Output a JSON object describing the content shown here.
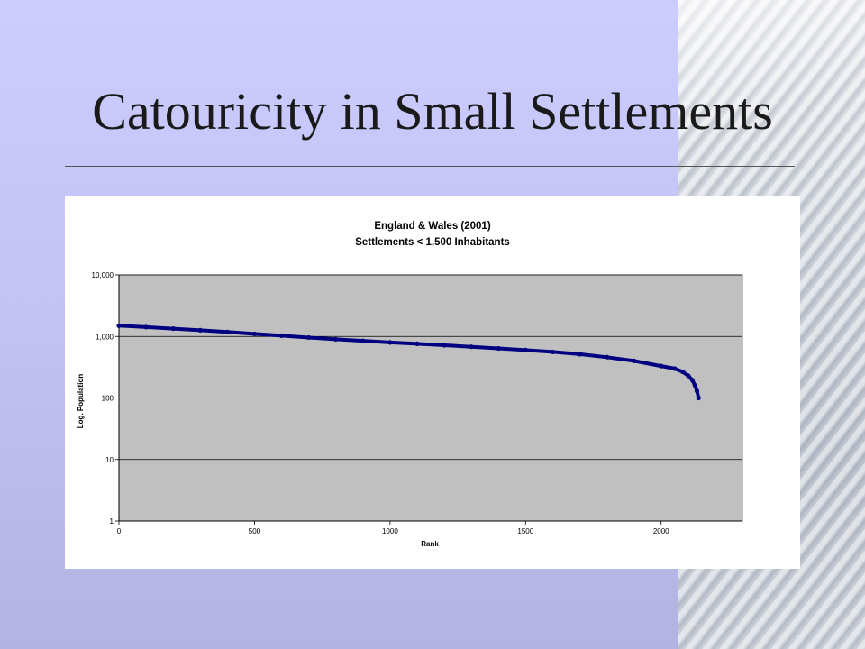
{
  "slide": {
    "title": "Catouricity in Small Settlements"
  },
  "colors": {
    "background": "#ccccff",
    "plot_area": "#c0c0c0",
    "series": "#000080"
  },
  "chart_data": {
    "type": "scatter",
    "title": "England & Wales  (2001)",
    "subtitle": "Settlements < 1,500 Inhabitants",
    "xlabel": "Rank",
    "ylabel": "Log. Population",
    "xlim": [
      0,
      2300
    ],
    "ylim": [
      1,
      10000
    ],
    "y_scale": "log",
    "grid": "horizontal",
    "x_ticks": [
      "0",
      "500",
      "1000",
      "1500",
      "2000"
    ],
    "y_ticks": [
      "1",
      "10",
      "100",
      "1,000",
      "10,000"
    ],
    "series": [
      {
        "points": [
          [
            0,
            1500
          ],
          [
            100,
            1420
          ],
          [
            200,
            1340
          ],
          [
            300,
            1260
          ],
          [
            400,
            1180
          ],
          [
            500,
            1100
          ],
          [
            600,
            1030
          ],
          [
            700,
            960
          ],
          [
            800,
            900
          ],
          [
            900,
            850
          ],
          [
            1000,
            800
          ],
          [
            1100,
            760
          ],
          [
            1200,
            720
          ],
          [
            1300,
            680
          ],
          [
            1400,
            640
          ],
          [
            1500,
            600
          ],
          [
            1600,
            560
          ],
          [
            1700,
            515
          ],
          [
            1800,
            460
          ],
          [
            1900,
            400
          ],
          [
            2000,
            330
          ],
          [
            2050,
            300
          ],
          [
            2080,
            265
          ],
          [
            2100,
            230
          ],
          [
            2115,
            195
          ],
          [
            2125,
            160
          ],
          [
            2132,
            130
          ],
          [
            2138,
            100
          ]
        ]
      }
    ]
  }
}
